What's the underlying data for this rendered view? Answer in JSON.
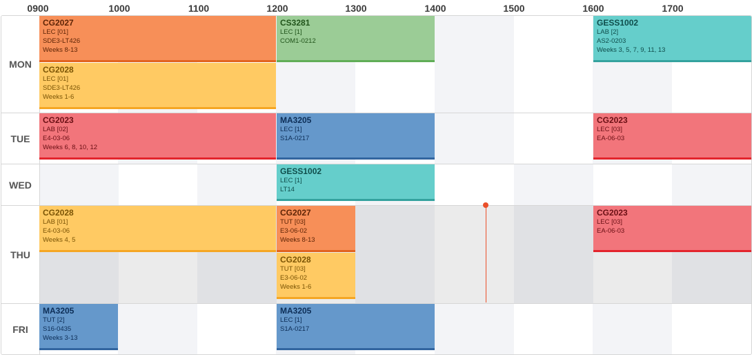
{
  "time_labels": [
    "0900",
    "1000",
    "1100",
    "1200",
    "1300",
    "1400",
    "1500",
    "1600",
    "1700"
  ],
  "days": [
    "MON",
    "TUE",
    "WED",
    "THU",
    "FRI"
  ],
  "lessons": [
    {
      "id": "mon-cg2027",
      "code": "CG2027",
      "type": "LEC [01]",
      "venue": "SDE3-LT426",
      "weeks": "Weeks 8-13"
    },
    {
      "id": "mon-cs3281",
      "code": "CS3281",
      "type": "LEC [1]",
      "venue": "COM1-0212",
      "weeks": ""
    },
    {
      "id": "mon-gess1002",
      "code": "GESS1002",
      "type": "LAB [2]",
      "venue": "AS2-0203",
      "weeks": "Weeks 3, 5, 7, 9, 11, 13"
    },
    {
      "id": "mon-cg2028",
      "code": "CG2028",
      "type": "LEC [01]",
      "venue": "SDE3-LT426",
      "weeks": "Weeks 1-6"
    },
    {
      "id": "tue-cg2023-lab",
      "code": "CG2023",
      "type": "LAB [02]",
      "venue": "E4-03-06",
      "weeks": "Weeks 6, 8, 10, 12"
    },
    {
      "id": "tue-ma3205",
      "code": "MA3205",
      "type": "LEC [1]",
      "venue": "S1A-0217",
      "weeks": ""
    },
    {
      "id": "tue-cg2023-lec",
      "code": "CG2023",
      "type": "LEC [03]",
      "venue": "EA-06-03",
      "weeks": ""
    },
    {
      "id": "wed-gess1002",
      "code": "GESS1002",
      "type": "LEC [1]",
      "venue": "LT14",
      "weeks": ""
    },
    {
      "id": "thu-cg2028-lab",
      "code": "CG2028",
      "type": "LAB [01]",
      "venue": "E4-03-06",
      "weeks": "Weeks 4, 5"
    },
    {
      "id": "thu-cg2027-tut",
      "code": "CG2027",
      "type": "TUT [03]",
      "venue": "E3-06-02",
      "weeks": "Weeks 8-13"
    },
    {
      "id": "thu-cg2023-lec",
      "code": "CG2023",
      "type": "LEC [03]",
      "venue": "EA-06-03",
      "weeks": ""
    },
    {
      "id": "thu-cg2028-tut",
      "code": "CG2028",
      "type": "TUT [03]",
      "venue": "E3-06-02",
      "weeks": "Weeks 1-6"
    },
    {
      "id": "fri-ma3205-tut",
      "code": "MA3205",
      "type": "TUT [2]",
      "venue": "S16-0435",
      "weeks": "Weeks 3-13"
    },
    {
      "id": "fri-ma3205-lec",
      "code": "MA3205",
      "type": "LEC [1]",
      "venue": "S1A-0217",
      "weeks": ""
    }
  ],
  "colors": {
    "orange": "#f78f58",
    "yellow": "#ffca63",
    "green": "#9bcc96",
    "teal": "#65cecb",
    "red": "#f2757b",
    "blue": "#6598cb",
    "now": "#ea4f2a"
  }
}
